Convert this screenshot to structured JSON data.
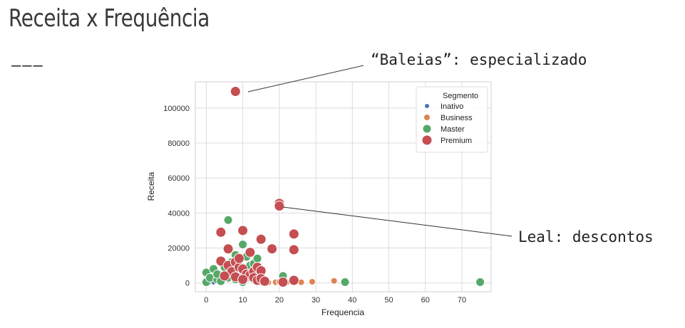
{
  "slide": {
    "title": "Receita x Frequência",
    "rule": "———"
  },
  "annotations": {
    "whales": "“Baleias”: especializado",
    "loyal": "Leal: descontos"
  },
  "colors": {
    "Inativo": "#4c72b0",
    "Business": "#dd8452",
    "Master": "#55a868",
    "Premium": "#c44e52"
  },
  "chart_data": {
    "type": "scatter",
    "xlabel": "Frequencia",
    "ylabel": "Receita",
    "xlim": [
      -3,
      78
    ],
    "ylim": [
      -5000,
      115000
    ],
    "xticks": [
      0,
      10,
      20,
      30,
      40,
      50,
      60,
      70
    ],
    "yticks": [
      0,
      20000,
      40000,
      60000,
      80000,
      100000
    ],
    "grid": true,
    "legend": {
      "title": "Segmento",
      "placement": "top-right",
      "entries": [
        "Inativo",
        "Business",
        "Master",
        "Premium"
      ]
    },
    "series": [
      {
        "name": "Inativo",
        "points": [
          [
            0,
            0
          ],
          [
            1,
            200
          ],
          [
            2,
            100
          ]
        ]
      },
      {
        "name": "Business",
        "points": [
          [
            14,
            500
          ],
          [
            17,
            300
          ],
          [
            19,
            400
          ],
          [
            20,
            600
          ],
          [
            22,
            300
          ],
          [
            26,
            400
          ],
          [
            29,
            700
          ],
          [
            35,
            1200
          ]
        ]
      },
      {
        "name": "Master",
        "points": [
          [
            0,
            500
          ],
          [
            0,
            6000
          ],
          [
            1,
            3000
          ],
          [
            2,
            8000
          ],
          [
            3,
            2000
          ],
          [
            3,
            5000
          ],
          [
            4,
            1000
          ],
          [
            5,
            9000
          ],
          [
            6,
            3000
          ],
          [
            6,
            36000
          ],
          [
            7,
            6000
          ],
          [
            7,
            12000
          ],
          [
            8,
            2000
          ],
          [
            8,
            16000
          ],
          [
            9,
            5000
          ],
          [
            9,
            14000
          ],
          [
            10,
            500
          ],
          [
            10,
            8000
          ],
          [
            10,
            22000
          ],
          [
            11,
            3000
          ],
          [
            11,
            15000
          ],
          [
            12,
            6000
          ],
          [
            12,
            10000
          ],
          [
            13,
            2000
          ],
          [
            13,
            11000
          ],
          [
            14,
            4000
          ],
          [
            14,
            14000
          ],
          [
            15,
            1000
          ],
          [
            16,
            500
          ],
          [
            21,
            4000
          ],
          [
            38,
            500
          ],
          [
            75,
            500
          ]
        ]
      },
      {
        "name": "Premium",
        "points": [
          [
            8,
            109500
          ],
          [
            20,
            45500
          ],
          [
            20,
            44000
          ],
          [
            4,
            29000
          ],
          [
            10,
            30000
          ],
          [
            15,
            25000
          ],
          [
            24,
            28000
          ],
          [
            6,
            19500
          ],
          [
            12,
            17500
          ],
          [
            18,
            19500
          ],
          [
            24,
            19000
          ],
          [
            4,
            12500
          ],
          [
            6,
            10000
          ],
          [
            7,
            6500
          ],
          [
            8,
            12000
          ],
          [
            9,
            9000
          ],
          [
            10,
            8000
          ],
          [
            11,
            5000
          ],
          [
            12,
            4500
          ],
          [
            13,
            6500
          ],
          [
            14,
            9000
          ],
          [
            15,
            7000
          ],
          [
            5,
            4000
          ],
          [
            8,
            3500
          ],
          [
            10,
            2000
          ],
          [
            13,
            3000
          ],
          [
            14,
            1500
          ],
          [
            15,
            2500
          ],
          [
            16,
            1000
          ],
          [
            21,
            500
          ],
          [
            24,
            1500
          ],
          [
            9,
            14000
          ]
        ]
      }
    ]
  }
}
